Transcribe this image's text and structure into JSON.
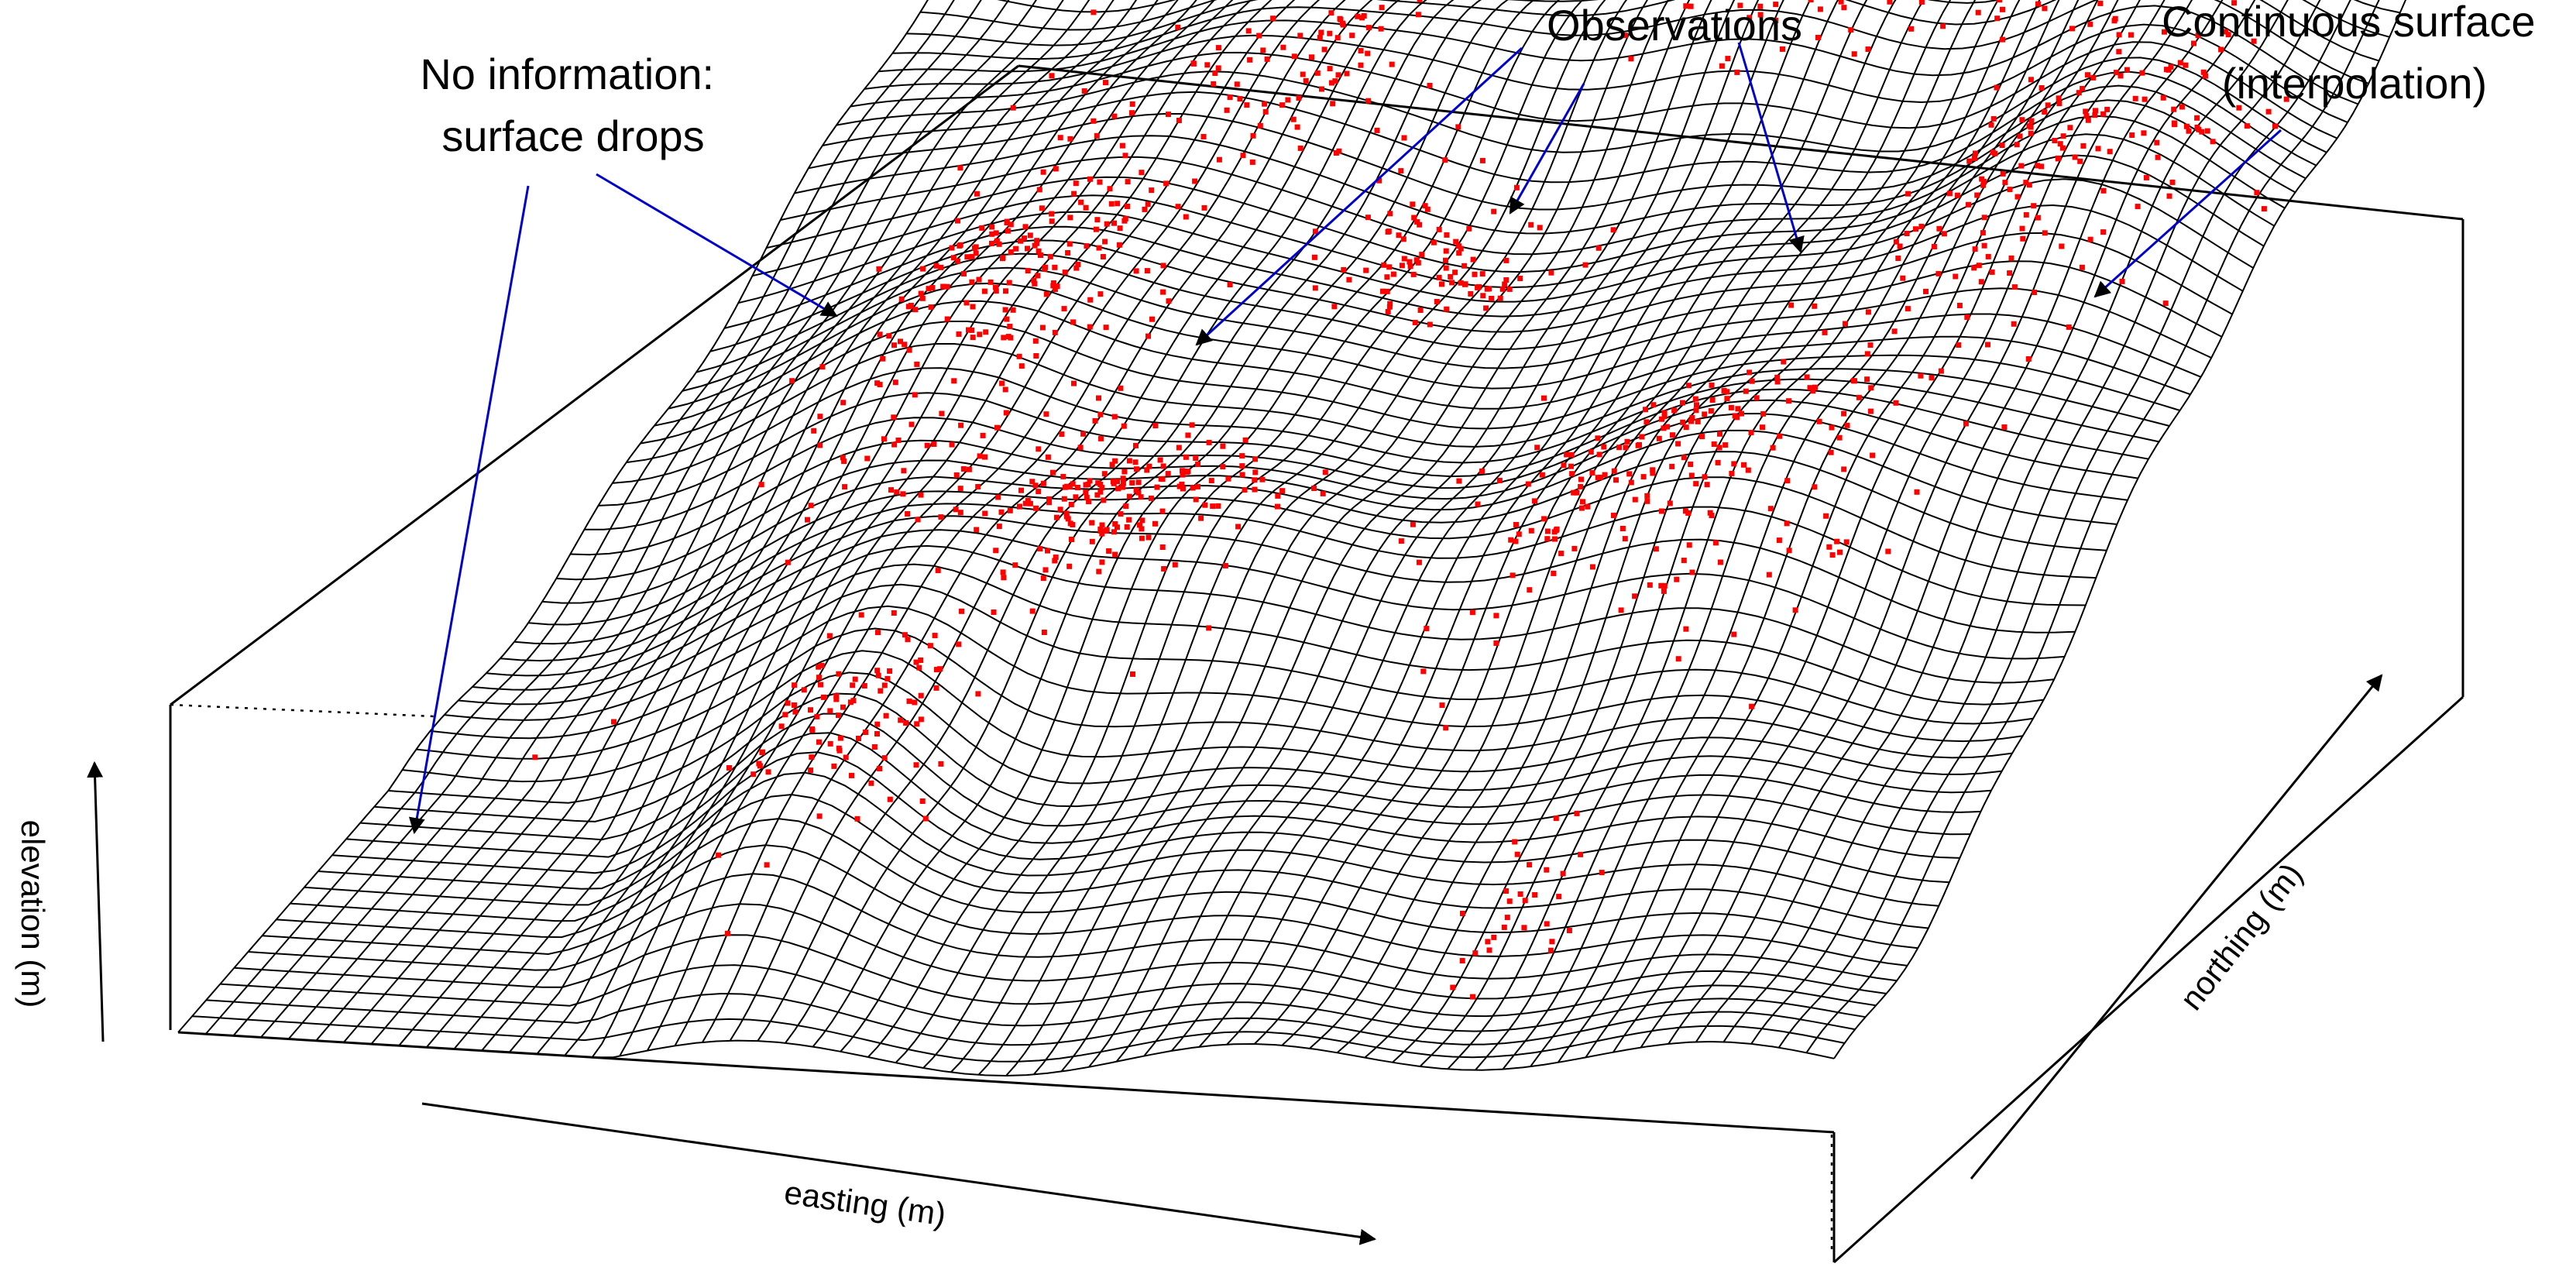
{
  "figure": {
    "annotations": [
      {
        "id": "no-information",
        "lines": [
          "No information:",
          "surface drops"
        ]
      },
      {
        "id": "observations",
        "lines": [
          "Observations"
        ]
      },
      {
        "id": "continuous-surface",
        "lines": [
          "Continuous surface",
          "(interpolation)"
        ]
      }
    ],
    "axes": {
      "elevation": "elevation (m)",
      "easting": "easting (m)",
      "northing": "northing (m)"
    },
    "colors": {
      "mesh": "#000000",
      "observations": "#ff0000",
      "callout_arrows": "#0000cc",
      "box": "#000000",
      "background": "#ffffff"
    },
    "icons": {
      "arrow": "arrow-icon",
      "observation_point": "observation-point-icon"
    }
  }
}
